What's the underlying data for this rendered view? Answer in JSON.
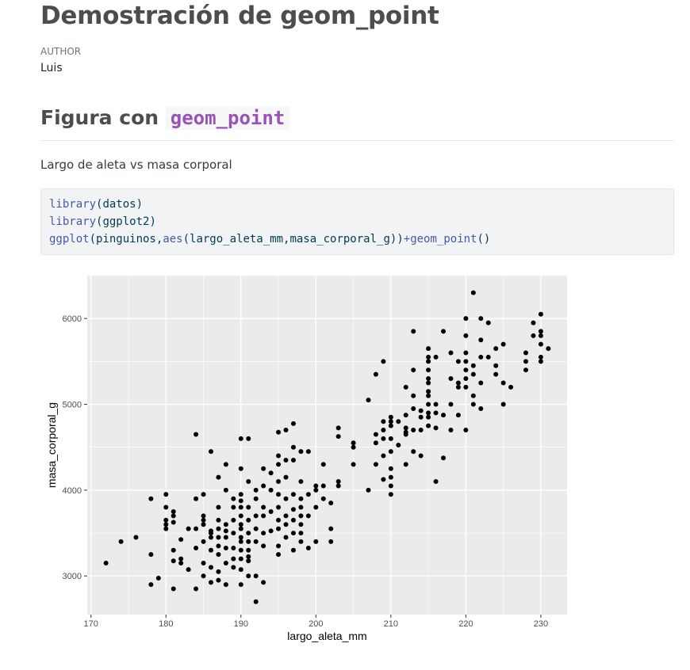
{
  "document": {
    "title": "Demostración de geom_point",
    "author_label": "AUTHOR",
    "author": "Luis",
    "section_prefix": "Figura con",
    "section_code": "geom_point",
    "paragraph": "Largo de aleta vs masa corporal"
  },
  "code": {
    "line1": {
      "fn": "library",
      "args": "(datos)"
    },
    "line2": {
      "fn": "library",
      "args": "(ggplot2)"
    },
    "line3": {
      "fn1": "ggplot",
      "a1": "(pinguinos,",
      "fn2": "aes",
      "a2": "(largo_aleta_mm,masa_corporal_g))",
      "plus": "+",
      "fn3": "geom_point",
      "a3": "()"
    }
  },
  "colors": {
    "panel": "#ebebeb",
    "grid": "#ffffff",
    "point": "#000000"
  },
  "chart_data": {
    "type": "scatter",
    "xlabel": "largo_aleta_mm",
    "ylabel": "masa_corporal_g",
    "xlim": [
      169.5,
      233.5
    ],
    "ylim": [
      2550,
      6500
    ],
    "xticks": [
      170,
      180,
      190,
      200,
      210,
      220,
      230
    ],
    "yticks": [
      3000,
      4000,
      5000,
      6000
    ],
    "grid": true,
    "points": [
      [
        172,
        3150
      ],
      [
        174,
        3400
      ],
      [
        176,
        3450
      ],
      [
        178,
        2900
      ],
      [
        178,
        3250
      ],
      [
        178,
        3900
      ],
      [
        179,
        2975
      ],
      [
        180,
        3550
      ],
      [
        180,
        3600
      ],
      [
        180,
        3650
      ],
      [
        180,
        3800
      ],
      [
        180,
        3950
      ],
      [
        181,
        2850
      ],
      [
        181,
        3175
      ],
      [
        181,
        3300
      ],
      [
        181,
        3625
      ],
      [
        181,
        3700
      ],
      [
        181,
        3750
      ],
      [
        182,
        3150
      ],
      [
        182,
        3200
      ],
      [
        182,
        3425
      ],
      [
        183,
        3075
      ],
      [
        183,
        3550
      ],
      [
        184,
        2850
      ],
      [
        184,
        3325
      ],
      [
        184,
        3550
      ],
      [
        184,
        3900
      ],
      [
        184,
        4650
      ],
      [
        185,
        3000
      ],
      [
        185,
        3150
      ],
      [
        185,
        3400
      ],
      [
        185,
        3600
      ],
      [
        185,
        3650
      ],
      [
        185,
        3700
      ],
      [
        185,
        3950
      ],
      [
        186,
        2925
      ],
      [
        186,
        3100
      ],
      [
        186,
        3300
      ],
      [
        186,
        3450
      ],
      [
        186,
        3500
      ],
      [
        186,
        3525
      ],
      [
        186,
        4450
      ],
      [
        187,
        2950
      ],
      [
        187,
        3050
      ],
      [
        187,
        3250
      ],
      [
        187,
        3350
      ],
      [
        187,
        3450
      ],
      [
        187,
        3550
      ],
      [
        187,
        3650
      ],
      [
        187,
        3800
      ],
      [
        187,
        4150
      ],
      [
        188,
        2900
      ],
      [
        188,
        3150
      ],
      [
        188,
        3325
      ],
      [
        188,
        3450
      ],
      [
        188,
        3525
      ],
      [
        188,
        3600
      ],
      [
        188,
        4000
      ],
      [
        188,
        4300
      ],
      [
        189,
        3100
      ],
      [
        189,
        3200
      ],
      [
        189,
        3325
      ],
      [
        189,
        3500
      ],
      [
        189,
        3650
      ],
      [
        189,
        3800
      ],
      [
        189,
        3900
      ],
      [
        190,
        2900
      ],
      [
        190,
        3075
      ],
      [
        190,
        3200
      ],
      [
        190,
        3300
      ],
      [
        190,
        3400
      ],
      [
        190,
        3450
      ],
      [
        190,
        3550
      ],
      [
        190,
        3600
      ],
      [
        190,
        3700
      ],
      [
        190,
        3800
      ],
      [
        190,
        3875
      ],
      [
        190,
        3950
      ],
      [
        190,
        4250
      ],
      [
        190,
        4600
      ],
      [
        191,
        3000
      ],
      [
        191,
        3175
      ],
      [
        191,
        3225
      ],
      [
        191,
        3300
      ],
      [
        191,
        3400
      ],
      [
        191,
        3500
      ],
      [
        191,
        3650
      ],
      [
        191,
        3800
      ],
      [
        191,
        4100
      ],
      [
        191,
        4600
      ],
      [
        192,
        2700
      ],
      [
        192,
        3000
      ],
      [
        192,
        3400
      ],
      [
        192,
        3550
      ],
      [
        192,
        3700
      ],
      [
        192,
        3900
      ],
      [
        192,
        4000
      ],
      [
        193,
        2925
      ],
      [
        193,
        3350
      ],
      [
        193,
        3500
      ],
      [
        193,
        3700
      ],
      [
        193,
        3800
      ],
      [
        193,
        4050
      ],
      [
        193,
        4250
      ],
      [
        194,
        3525
      ],
      [
        194,
        3750
      ],
      [
        194,
        4000
      ],
      [
        194,
        4200
      ],
      [
        195,
        3250
      ],
      [
        195,
        3350
      ],
      [
        195,
        3550
      ],
      [
        195,
        3650
      ],
      [
        195,
        3800
      ],
      [
        195,
        3950
      ],
      [
        195,
        4100
      ],
      [
        195,
        4300
      ],
      [
        195,
        4400
      ],
      [
        195,
        4675
      ],
      [
        196,
        3450
      ],
      [
        196,
        3600
      ],
      [
        196,
        3700
      ],
      [
        196,
        3900
      ],
      [
        196,
        4150
      ],
      [
        196,
        4350
      ],
      [
        196,
        4700
      ],
      [
        197,
        3300
      ],
      [
        197,
        3500
      ],
      [
        197,
        3650
      ],
      [
        197,
        3775
      ],
      [
        197,
        3950
      ],
      [
        197,
        4350
      ],
      [
        197,
        4500
      ],
      [
        197,
        4775
      ],
      [
        198,
        3400
      ],
      [
        198,
        3500
      ],
      [
        198,
        3600
      ],
      [
        198,
        3700
      ],
      [
        198,
        3800
      ],
      [
        198,
        3900
      ],
      [
        198,
        4100
      ],
      [
        198,
        4450
      ],
      [
        199,
        3325
      ],
      [
        199,
        3700
      ],
      [
        199,
        3950
      ],
      [
        199,
        4450
      ],
      [
        200,
        3400
      ],
      [
        200,
        3800
      ],
      [
        200,
        4000
      ],
      [
        200,
        4050
      ],
      [
        201,
        3900
      ],
      [
        201,
        4050
      ],
      [
        201,
        4300
      ],
      [
        202,
        3400
      ],
      [
        202,
        3550
      ],
      [
        202,
        3850
      ],
      [
        203,
        4050
      ],
      [
        203,
        4100
      ],
      [
        203,
        4625
      ],
      [
        203,
        4725
      ],
      [
        205,
        4300
      ],
      [
        205,
        4500
      ],
      [
        205,
        4550
      ],
      [
        207,
        4000
      ],
      [
        207,
        5050
      ],
      [
        208,
        4300
      ],
      [
        208,
        4550
      ],
      [
        208,
        4650
      ],
      [
        208,
        5350
      ],
      [
        209,
        4125
      ],
      [
        209,
        4400
      ],
      [
        209,
        4600
      ],
      [
        209,
        4700
      ],
      [
        209,
        4800
      ],
      [
        209,
        5500
      ],
      [
        210,
        3950
      ],
      [
        210,
        4050
      ],
      [
        210,
        4150
      ],
      [
        210,
        4250
      ],
      [
        210,
        4450
      ],
      [
        210,
        4600
      ],
      [
        210,
        4750
      ],
      [
        210,
        4800
      ],
      [
        210,
        4850
      ],
      [
        211,
        4525
      ],
      [
        211,
        4800
      ],
      [
        212,
        4300
      ],
      [
        212,
        4650
      ],
      [
        212,
        4675
      ],
      [
        212,
        4725
      ],
      [
        212,
        4875
      ],
      [
        212,
        5200
      ],
      [
        213,
        4450
      ],
      [
        213,
        4700
      ],
      [
        213,
        4950
      ],
      [
        213,
        5100
      ],
      [
        213,
        5400
      ],
      [
        213,
        5850
      ],
      [
        214,
        4400
      ],
      [
        214,
        4700
      ],
      [
        214,
        4850
      ],
      [
        214,
        4925
      ],
      [
        215,
        4750
      ],
      [
        215,
        4850
      ],
      [
        215,
        4900
      ],
      [
        215,
        5000
      ],
      [
        215,
        5100
      ],
      [
        215,
        5150
      ],
      [
        215,
        5250
      ],
      [
        215,
        5300
      ],
      [
        215,
        5400
      ],
      [
        215,
        5500
      ],
      [
        215,
        5550
      ],
      [
        215,
        5650
      ],
      [
        216,
        4100
      ],
      [
        216,
        4725
      ],
      [
        216,
        4900
      ],
      [
        216,
        5000
      ],
      [
        216,
        5550
      ],
      [
        217,
        4375
      ],
      [
        217,
        4875
      ],
      [
        217,
        5850
      ],
      [
        218,
        4700
      ],
      [
        218,
        5000
      ],
      [
        218,
        5300
      ],
      [
        218,
        5600
      ],
      [
        219,
        4875
      ],
      [
        219,
        5200
      ],
      [
        219,
        5250
      ],
      [
        219,
        5500
      ],
      [
        220,
        4700
      ],
      [
        220,
        5200
      ],
      [
        220,
        5300
      ],
      [
        220,
        5400
      ],
      [
        220,
        5500
      ],
      [
        220,
        5600
      ],
      [
        220,
        5800
      ],
      [
        220,
        6000
      ],
      [
        221,
        5000
      ],
      [
        221,
        5100
      ],
      [
        221,
        5350
      ],
      [
        221,
        5450
      ],
      [
        221,
        6300
      ],
      [
        222,
        4950
      ],
      [
        222,
        5250
      ],
      [
        222,
        5550
      ],
      [
        222,
        5750
      ],
      [
        222,
        6000
      ],
      [
        223,
        5550
      ],
      [
        223,
        5950
      ],
      [
        224,
        5350
      ],
      [
        224,
        5450
      ],
      [
        224,
        5650
      ],
      [
        225,
        5000
      ],
      [
        225,
        5250
      ],
      [
        225,
        5700
      ],
      [
        226,
        5200
      ],
      [
        228,
        5400
      ],
      [
        228,
        5500
      ],
      [
        228,
        5600
      ],
      [
        229,
        5800
      ],
      [
        229,
        5950
      ],
      [
        230,
        5500
      ],
      [
        230,
        5550
      ],
      [
        230,
        5700
      ],
      [
        230,
        5800
      ],
      [
        230,
        5850
      ],
      [
        230,
        6050
      ],
      [
        231,
        5650
      ]
    ]
  }
}
